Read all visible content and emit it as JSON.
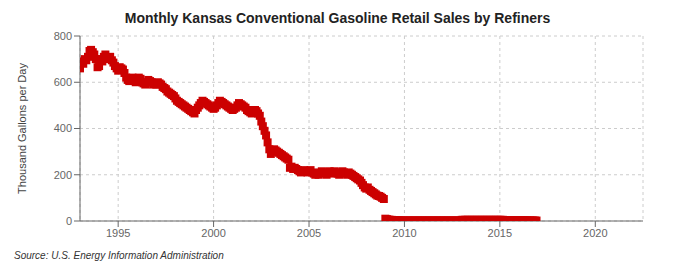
{
  "chart_data": {
    "type": "scatter",
    "title": "Monthly Kansas Conventional Gasoline Retail Sales by Refiners",
    "ylabel": "Thousand Gallons per Day",
    "annotations": [
      "Source: U.S. Energy Information Administration"
    ],
    "color": "#cc0000",
    "marker": "square",
    "grid": true,
    "xlim": [
      1993.0,
      2022.5
    ],
    "ylim": [
      0,
      800
    ],
    "xticks": [
      1995,
      2000,
      2005,
      2010,
      2015,
      2020
    ],
    "yticks": [
      0,
      200,
      400,
      600,
      800
    ],
    "x": [
      1993.0,
      1993.08,
      1993.17,
      1993.25,
      1993.33,
      1993.42,
      1993.5,
      1993.58,
      1993.67,
      1993.75,
      1993.83,
      1993.92,
      1994.0,
      1994.08,
      1994.17,
      1994.25,
      1994.33,
      1994.42,
      1994.5,
      1994.58,
      1994.67,
      1994.75,
      1994.83,
      1994.92,
      1995.0,
      1995.08,
      1995.17,
      1995.25,
      1995.33,
      1995.42,
      1995.5,
      1995.58,
      1995.67,
      1995.75,
      1995.83,
      1995.92,
      1996.0,
      1996.08,
      1996.17,
      1996.25,
      1996.33,
      1996.42,
      1996.5,
      1996.58,
      1996.67,
      1996.75,
      1996.83,
      1996.92,
      1997.0,
      1997.08,
      1997.17,
      1997.25,
      1997.33,
      1997.42,
      1997.5,
      1997.58,
      1997.67,
      1997.75,
      1997.83,
      1997.92,
      1998.0,
      1998.08,
      1998.17,
      1998.25,
      1998.33,
      1998.42,
      1998.5,
      1998.58,
      1998.67,
      1998.75,
      1998.83,
      1998.92,
      1999.0,
      1999.08,
      1999.17,
      1999.25,
      1999.33,
      1999.42,
      1999.5,
      1999.58,
      1999.67,
      1999.75,
      1999.83,
      1999.92,
      2000.0,
      2000.08,
      2000.17,
      2000.25,
      2000.33,
      2000.42,
      2000.5,
      2000.58,
      2000.67,
      2000.75,
      2000.83,
      2000.92,
      2001.0,
      2001.08,
      2001.17,
      2001.25,
      2001.33,
      2001.42,
      2001.5,
      2001.58,
      2001.67,
      2001.75,
      2001.83,
      2001.92,
      2002.0,
      2002.08,
      2002.17,
      2002.25,
      2002.33,
      2002.42,
      2002.5,
      2002.58,
      2002.67,
      2002.75,
      2002.83,
      2002.92,
      2003.0,
      2003.08,
      2003.17,
      2003.25,
      2003.33,
      2003.42,
      2003.5,
      2003.58,
      2003.67,
      2003.75,
      2003.83,
      2003.92,
      2004.0,
      2004.08,
      2004.17,
      2004.25,
      2004.33,
      2004.42,
      2004.5,
      2004.58,
      2004.67,
      2004.75,
      2004.83,
      2004.92,
      2005.0,
      2005.08,
      2005.17,
      2005.25,
      2005.33,
      2005.42,
      2005.5,
      2005.58,
      2005.67,
      2005.75,
      2005.83,
      2005.92,
      2006.0,
      2006.08,
      2006.17,
      2006.25,
      2006.33,
      2006.42,
      2006.5,
      2006.58,
      2006.67,
      2006.75,
      2006.83,
      2006.92,
      2007.0,
      2007.08,
      2007.17,
      2007.25,
      2007.33,
      2007.42,
      2007.5,
      2007.58,
      2007.67,
      2007.75,
      2007.83,
      2007.92,
      2008.0,
      2008.08,
      2008.17,
      2008.25,
      2008.33,
      2008.42,
      2008.5,
      2008.58,
      2008.67,
      2008.75,
      2008.83,
      2008.92,
      2009.0,
      2009.08,
      2009.17,
      2009.25,
      2009.33,
      2009.42,
      2009.5,
      2009.58,
      2009.67,
      2009.75,
      2009.83,
      2009.92,
      2010.0,
      2010.08,
      2010.17,
      2010.25,
      2010.33,
      2010.42,
      2010.5,
      2010.58,
      2010.67,
      2010.75,
      2010.83,
      2010.92,
      2011.0,
      2011.08,
      2011.17,
      2011.25,
      2011.33,
      2011.42,
      2011.5,
      2011.58,
      2011.67,
      2011.75,
      2011.83,
      2011.92,
      2012.0,
      2012.08,
      2012.17,
      2012.25,
      2012.33,
      2012.42,
      2012.5,
      2012.58,
      2012.67,
      2012.75,
      2012.83,
      2012.92,
      2013.0,
      2013.08,
      2013.17,
      2013.25,
      2013.33,
      2013.42,
      2013.5,
      2013.58,
      2013.67,
      2013.75,
      2013.83,
      2013.92,
      2014.0,
      2014.08,
      2014.17,
      2014.25,
      2014.33,
      2014.42,
      2014.5,
      2014.58,
      2014.67,
      2014.75,
      2014.83,
      2014.92,
      2015.0,
      2015.08,
      2015.17,
      2015.25,
      2015.33,
      2015.42,
      2015.5,
      2015.58,
      2015.67,
      2015.75,
      2015.83,
      2015.92,
      2016.0,
      2016.08,
      2016.17,
      2016.25,
      2016.33,
      2016.42,
      2016.5,
      2016.58,
      2016.67,
      2016.75,
      2016.83,
      2016.92
    ],
    "values": [
      660,
      690,
      680,
      700,
      695,
      710,
      735,
      740,
      730,
      720,
      700,
      665,
      670,
      700,
      690,
      710,
      720,
      705,
      700,
      710,
      695,
      685,
      670,
      660,
      650,
      665,
      660,
      655,
      640,
      620,
      610,
      605,
      615,
      620,
      610,
      600,
      605,
      620,
      615,
      600,
      595,
      590,
      600,
      610,
      605,
      600,
      590,
      595,
      590,
      600,
      595,
      590,
      580,
      575,
      570,
      560,
      555,
      550,
      545,
      540,
      530,
      520,
      515,
      510,
      505,
      500,
      495,
      490,
      485,
      480,
      475,
      470,
      465,
      480,
      490,
      500,
      510,
      520,
      515,
      510,
      505,
      500,
      495,
      490,
      485,
      490,
      500,
      510,
      520,
      515,
      510,
      505,
      500,
      495,
      490,
      485,
      480,
      485,
      490,
      500,
      510,
      505,
      500,
      495,
      490,
      480,
      475,
      470,
      465,
      470,
      480,
      475,
      465,
      455,
      430,
      410,
      390,
      370,
      340,
      310,
      290,
      300,
      310,
      305,
      300,
      295,
      290,
      285,
      280,
      275,
      270,
      265,
      230,
      235,
      225,
      230,
      225,
      220,
      215,
      210,
      215,
      220,
      215,
      210,
      215,
      220,
      210,
      205,
      200,
      205,
      200,
      210,
      215,
      210,
      205,
      200,
      210,
      215,
      205,
      210,
      215,
      210,
      205,
      200,
      210,
      215,
      210,
      205,
      200,
      210,
      205,
      200,
      195,
      190,
      185,
      180,
      175,
      165,
      155,
      145,
      140,
      145,
      135,
      130,
      125,
      120,
      115,
      110,
      108,
      105,
      100,
      95,
      10,
      8,
      6,
      5,
      5,
      4,
      4,
      3,
      3,
      3,
      2,
      2,
      2,
      2,
      2,
      2,
      2,
      2,
      2,
      2,
      2,
      2,
      2,
      2,
      2,
      2,
      2,
      2,
      2,
      2,
      2,
      2,
      2,
      2,
      2,
      2,
      2,
      2,
      2,
      2,
      2,
      2,
      2,
      2,
      2,
      2,
      2,
      2,
      5,
      5,
      5,
      5,
      5,
      5,
      5,
      5,
      5,
      5,
      5,
      5,
      5,
      5,
      5,
      5,
      5,
      5,
      5,
      5,
      5,
      5,
      5,
      5,
      5,
      5,
      5,
      4,
      4,
      4,
      4,
      4,
      4,
      4,
      3,
      3,
      3,
      3,
      3,
      3,
      3,
      3,
      2,
      2,
      2,
      2,
      2,
      2
    ]
  }
}
